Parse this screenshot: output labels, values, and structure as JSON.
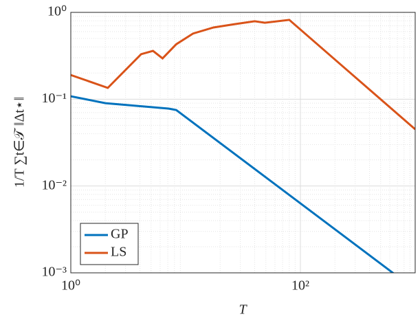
{
  "chart_data": {
    "type": "line",
    "log_x": true,
    "log_y": true,
    "grid": true,
    "legend": "lower left",
    "x_label": "T",
    "y_label": "1/T ∑t∈𝒯 ‖Δt⋆‖",
    "xlim": [
      1,
      1000
    ],
    "ylim": [
      0.001,
      1
    ],
    "xticks": [
      {
        "value": 1,
        "label": "10⁰"
      },
      {
        "value": 100,
        "label": "10²"
      }
    ],
    "yticks": [
      {
        "value": 0.001,
        "label": "10⁻³"
      },
      {
        "value": 0.01,
        "label": "10⁻²"
      },
      {
        "value": 0.1,
        "label": "10⁻¹"
      },
      {
        "value": 1,
        "label": "10⁰"
      }
    ],
    "series": [
      {
        "name": "GP",
        "color": "#0072bd",
        "x": [
          1,
          2,
          7.1,
          8.3,
          1000
        ],
        "values": [
          0.108,
          0.09,
          0.078,
          0.075,
          0.00064
        ]
      },
      {
        "name": "LS",
        "color": "#d95319",
        "x": [
          1,
          2.1,
          4.1,
          5.2,
          6.3,
          8.3,
          11.6,
          17.5,
          26.5,
          40,
          49,
          80,
          1000
        ],
        "values": [
          0.19,
          0.135,
          0.33,
          0.36,
          0.295,
          0.43,
          0.57,
          0.67,
          0.73,
          0.79,
          0.76,
          0.82,
          0.045
        ]
      }
    ]
  }
}
